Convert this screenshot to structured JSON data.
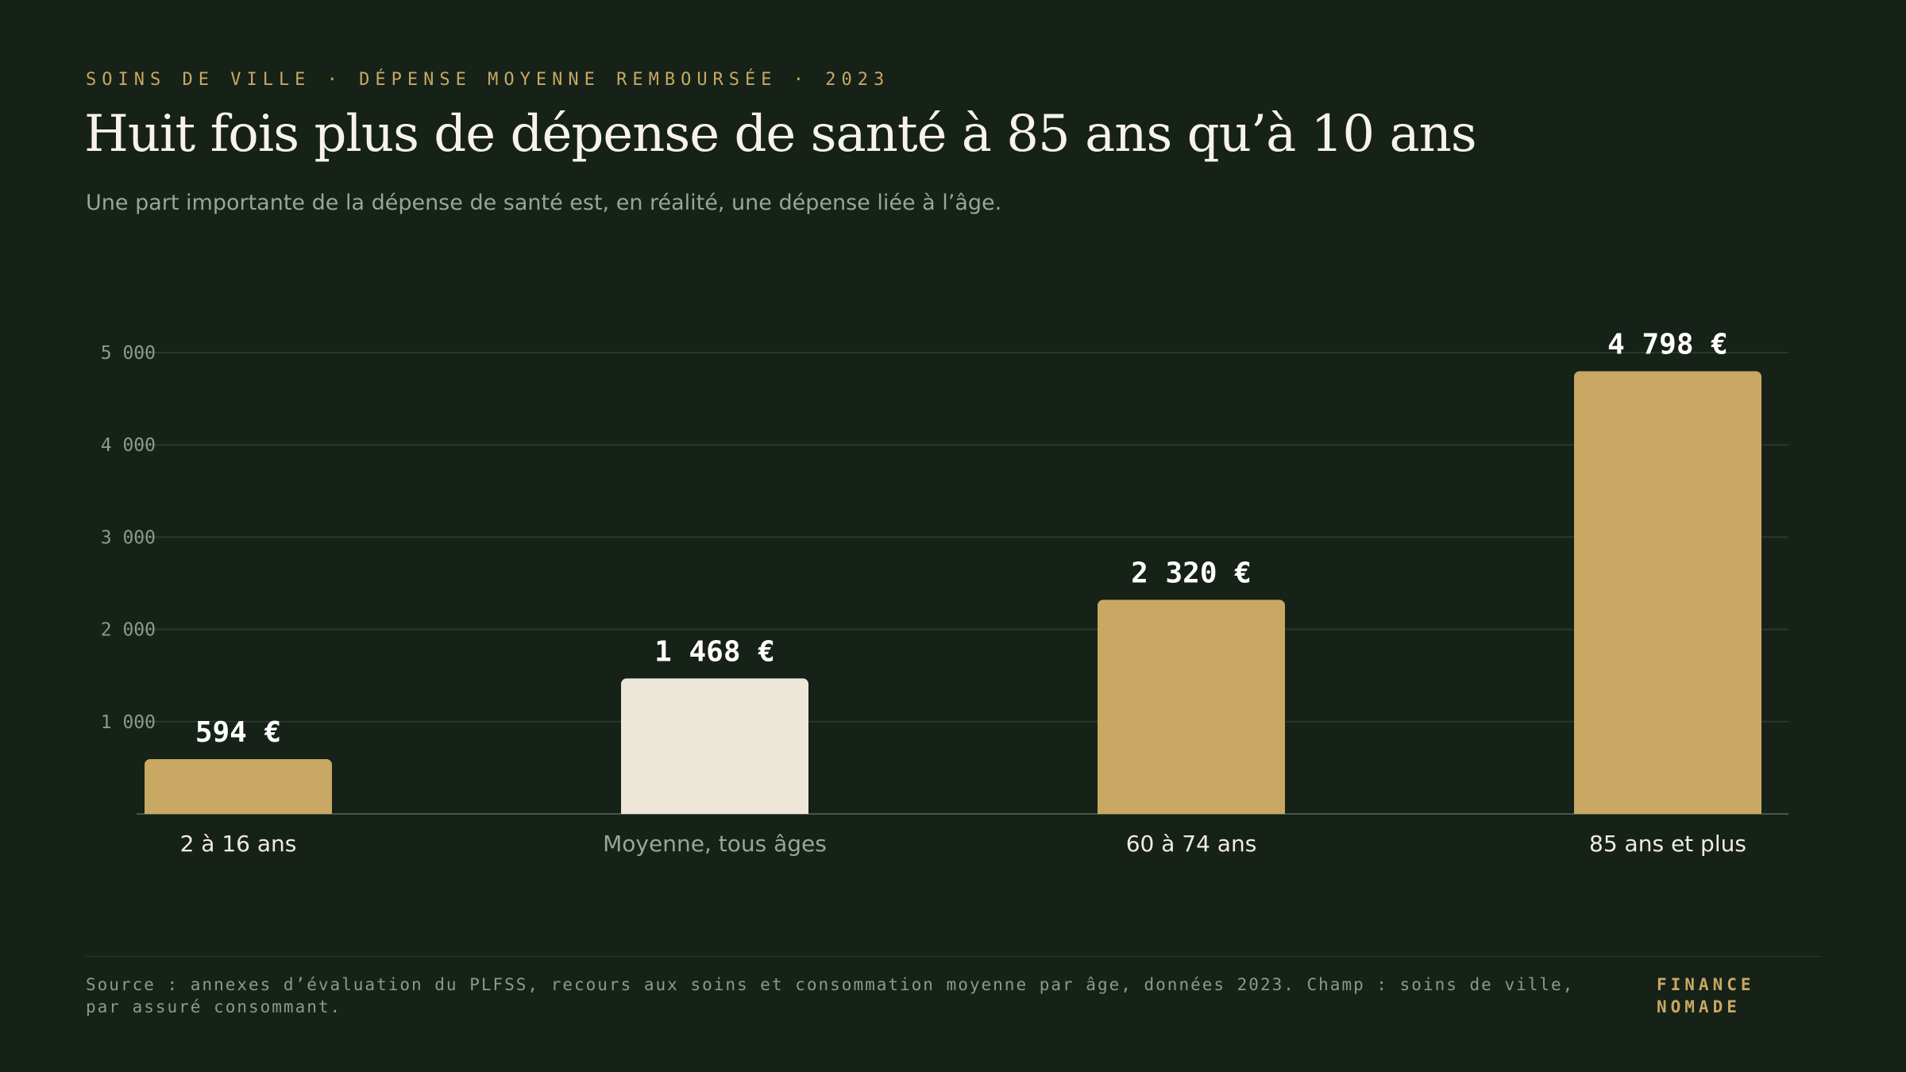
{
  "header": {
    "kicker": "SOINS DE VILLE · DÉPENSE MOYENNE REMBOURSÉE · 2023",
    "title": "Huit fois plus de dépense de santé à 85 ans qu’à 10 ans",
    "subtitle": "Une part importante de la dépense de santé est, en réalité, une dépense liée à l’âge."
  },
  "chart_data": {
    "type": "bar",
    "categories": [
      "2 à 16 ans",
      "Moyenne, tous âges",
      "60 à 74 ans",
      "85 ans et plus"
    ],
    "values": [
      594,
      1468,
      2320,
      4798
    ],
    "data_labels": [
      "594 €",
      "1 468 €",
      "2 320 €",
      "4 798 €"
    ],
    "highlight_category": "Moyenne, tous âges",
    "ylim": [
      0,
      5000
    ],
    "yticks": [
      1000,
      2000,
      3000,
      4000,
      5000
    ],
    "ytick_labels": [
      "1 000",
      "2 000",
      "3 000",
      "4 000",
      "5 000"
    ],
    "grid": true,
    "title": "",
    "xlabel": "",
    "ylabel": "",
    "colors": {
      "bar": "#c8a862",
      "highlight_bar": "#ede7d7",
      "grid": "#2a382c",
      "axis": "#4a564a",
      "tick_label": "#8e998b",
      "data_label": "#ffffff",
      "category_label": "#f1ecdf",
      "highlight_category_label": "#9aa596"
    }
  },
  "footer": {
    "source": "Source : annexes d’évaluation du PLFSS, recours aux soins et consommation moyenne par âge, données 2023. Champ : soins de ville, par assuré consommant.",
    "brand_line1": "FINANCE",
    "brand_line2": "NOMADE"
  },
  "colors": {
    "background": "#162118",
    "accent": "#c8a862"
  }
}
